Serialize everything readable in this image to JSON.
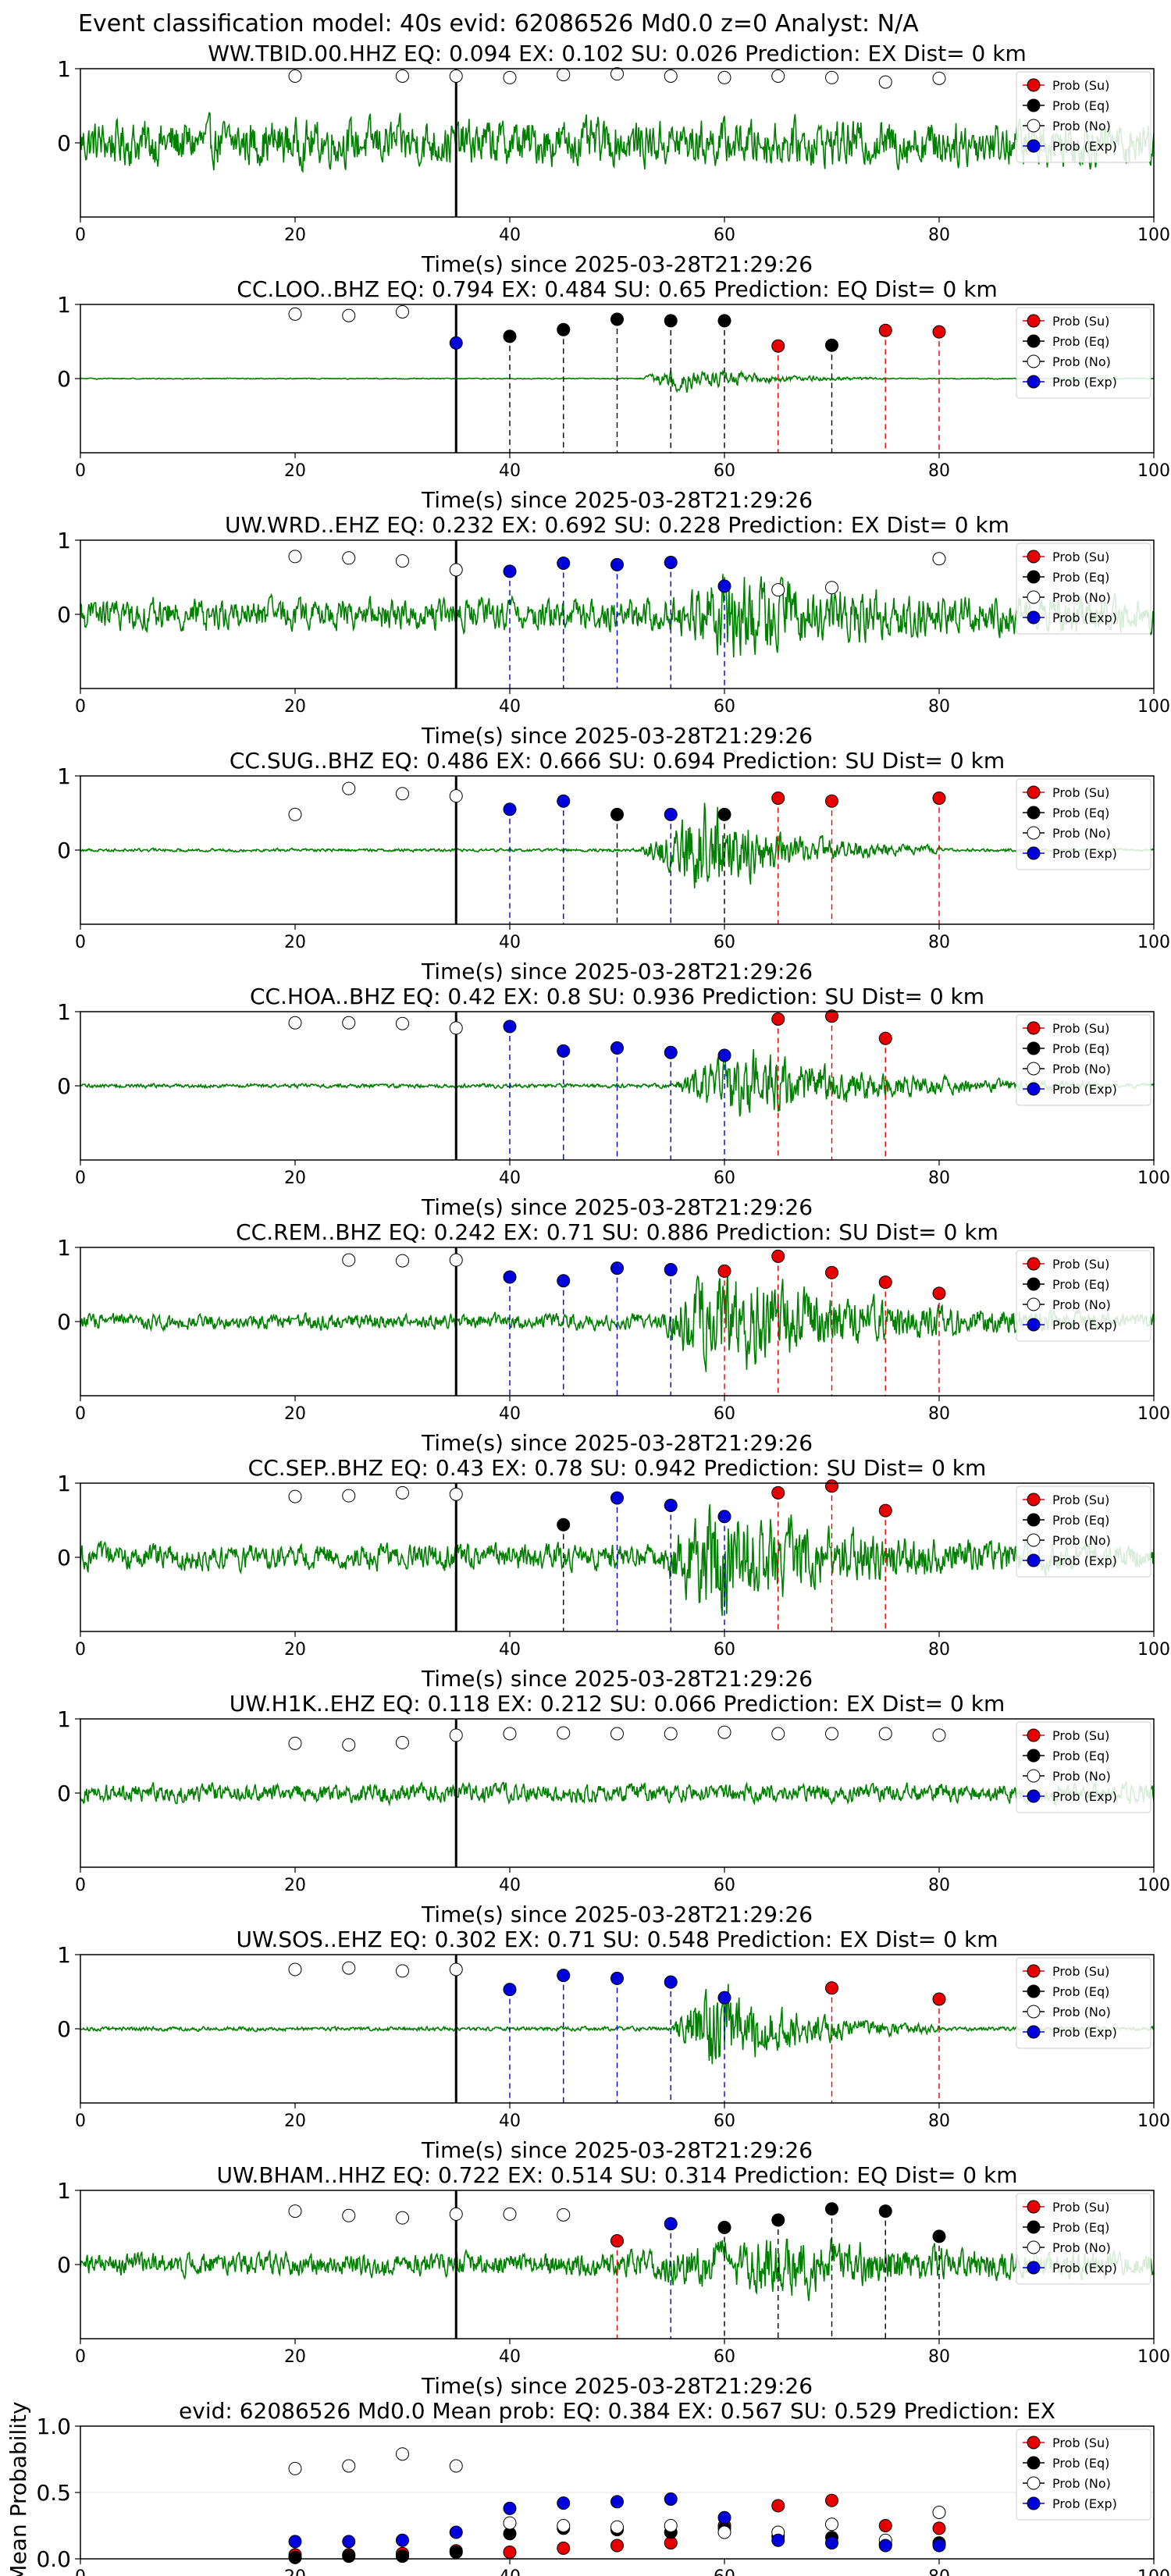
{
  "figure": {
    "title": "Event classification model: 40s evid: 62086526 Md0.0 z=0 Analyst: N/A"
  },
  "legend": {
    "items": [
      {
        "label": "Prob (Su)",
        "color": "#e60000",
        "filled": true
      },
      {
        "label": "Prob (Eq)",
        "color": "#000000",
        "filled": true
      },
      {
        "label": "Prob (No)",
        "color": "#ffffff",
        "filled": false
      },
      {
        "label": "Prob (Exp)",
        "color": "#0000dd",
        "filled": true
      }
    ],
    "placement": "top-right"
  },
  "colors": {
    "waveform": "#008000",
    "su": "#e60000",
    "eq": "#000000",
    "exp": "#0000dd",
    "noise_face": "#ffffff"
  },
  "chart_data": [
    {
      "type": "line",
      "station_title": "WW.TBID.00.HHZ   EQ: 0.094  EX: 0.102  SU: 0.026   Prediction: EX    Dist= 0 km",
      "xlabel": "Time(s) since 2025-03-28T21:29:26",
      "xlim": [
        0,
        100
      ],
      "xticks": [
        0,
        20,
        40,
        60,
        80,
        100
      ],
      "yticks": [
        0,
        1
      ],
      "ylim": [
        -1,
        1
      ],
      "onset": 35,
      "amplitude": 0.45,
      "burst": null,
      "points": [
        {
          "t": 20,
          "p": 0.9,
          "cls": "No"
        },
        {
          "t": 30,
          "p": 0.9,
          "cls": "No"
        },
        {
          "t": 35,
          "p": 0.9,
          "cls": "No"
        },
        {
          "t": 40,
          "p": 0.88,
          "cls": "No"
        },
        {
          "t": 45,
          "p": 0.92,
          "cls": "No"
        },
        {
          "t": 50,
          "p": 0.93,
          "cls": "No"
        },
        {
          "t": 55,
          "p": 0.9,
          "cls": "No"
        },
        {
          "t": 60,
          "p": 0.88,
          "cls": "No"
        },
        {
          "t": 65,
          "p": 0.9,
          "cls": "No"
        },
        {
          "t": 70,
          "p": 0.88,
          "cls": "No"
        },
        {
          "t": 75,
          "p": 0.82,
          "cls": "No"
        },
        {
          "t": 80,
          "p": 0.87,
          "cls": "No"
        }
      ]
    },
    {
      "type": "line",
      "station_title": "CC.LOO..BHZ   EQ: 0.794  EX: 0.484  SU: 0.65   Prediction: EQ    Dist= 0 km",
      "xlabel": "Time(s) since 2025-03-28T21:29:26",
      "xlim": [
        0,
        100
      ],
      "xticks": [
        0,
        20,
        40,
        60,
        80,
        100
      ],
      "yticks": [
        0,
        1
      ],
      "ylim": [
        -1,
        1
      ],
      "onset": 35,
      "amplitude": 0.01,
      "burst": {
        "start": 52,
        "peak": 56,
        "end": 75,
        "amp": 0.25
      },
      "points": [
        {
          "t": 20,
          "p": 0.87,
          "cls": "No"
        },
        {
          "t": 25,
          "p": 0.85,
          "cls": "No"
        },
        {
          "t": 30,
          "p": 0.9,
          "cls": "No"
        },
        {
          "t": 35,
          "p": 0.48,
          "cls": "Exp"
        },
        {
          "t": 40,
          "p": 0.57,
          "cls": "Eq"
        },
        {
          "t": 45,
          "p": 0.66,
          "cls": "Eq"
        },
        {
          "t": 50,
          "p": 0.8,
          "cls": "Eq"
        },
        {
          "t": 55,
          "p": 0.78,
          "cls": "Eq"
        },
        {
          "t": 60,
          "p": 0.78,
          "cls": "Eq"
        },
        {
          "t": 65,
          "p": 0.44,
          "cls": "Su"
        },
        {
          "t": 70,
          "p": 0.45,
          "cls": "Eq"
        },
        {
          "t": 75,
          "p": 0.65,
          "cls": "Su"
        },
        {
          "t": 80,
          "p": 0.63,
          "cls": "Su"
        }
      ]
    },
    {
      "type": "line",
      "station_title": "UW.WRD..EHZ   EQ: 0.232  EX: 0.692  SU: 0.228   Prediction: EX    Dist= 0 km",
      "xlabel": "Time(s) since 2025-03-28T21:29:26",
      "xlim": [
        0,
        100
      ],
      "xticks": [
        0,
        20,
        40,
        60,
        80,
        100
      ],
      "yticks": [
        0,
        1
      ],
      "ylim": [
        -1,
        1
      ],
      "onset": 35,
      "amplitude": 0.3,
      "burst": {
        "start": 55,
        "peak": 60,
        "end": 100,
        "amp": 0.55
      },
      "points": [
        {
          "t": 20,
          "p": 0.78,
          "cls": "No"
        },
        {
          "t": 25,
          "p": 0.76,
          "cls": "No"
        },
        {
          "t": 30,
          "p": 0.72,
          "cls": "No"
        },
        {
          "t": 35,
          "p": 0.6,
          "cls": "No"
        },
        {
          "t": 40,
          "p": 0.58,
          "cls": "Exp"
        },
        {
          "t": 45,
          "p": 0.69,
          "cls": "Exp"
        },
        {
          "t": 50,
          "p": 0.67,
          "cls": "Exp"
        },
        {
          "t": 55,
          "p": 0.7,
          "cls": "Exp"
        },
        {
          "t": 60,
          "p": 0.38,
          "cls": "Exp"
        },
        {
          "t": 65,
          "p": 0.33,
          "cls": "No"
        },
        {
          "t": 70,
          "p": 0.36,
          "cls": "No"
        },
        {
          "t": 80,
          "p": 0.75,
          "cls": "No"
        }
      ]
    },
    {
      "type": "line",
      "station_title": "CC.SUG..BHZ   EQ: 0.486  EX: 0.666  SU: 0.694   Prediction: SU    Dist= 0 km",
      "xlabel": "Time(s) since 2025-03-28T21:29:26",
      "xlim": [
        0,
        100
      ],
      "xticks": [
        0,
        20,
        40,
        60,
        80,
        100
      ],
      "yticks": [
        0,
        1
      ],
      "ylim": [
        -1,
        1
      ],
      "onset": 35,
      "amplitude": 0.03,
      "burst": {
        "start": 52,
        "peak": 58,
        "end": 80,
        "amp": 0.95
      },
      "points": [
        {
          "t": 20,
          "p": 0.48,
          "cls": "No"
        },
        {
          "t": 25,
          "p": 0.83,
          "cls": "No"
        },
        {
          "t": 30,
          "p": 0.76,
          "cls": "No"
        },
        {
          "t": 35,
          "p": 0.73,
          "cls": "No"
        },
        {
          "t": 40,
          "p": 0.55,
          "cls": "Exp"
        },
        {
          "t": 45,
          "p": 0.66,
          "cls": "Exp"
        },
        {
          "t": 50,
          "p": 0.48,
          "cls": "Eq"
        },
        {
          "t": 55,
          "p": 0.48,
          "cls": "Exp"
        },
        {
          "t": 60,
          "p": 0.48,
          "cls": "Eq"
        },
        {
          "t": 65,
          "p": 0.7,
          "cls": "Su"
        },
        {
          "t": 70,
          "p": 0.66,
          "cls": "Su"
        },
        {
          "t": 80,
          "p": 0.7,
          "cls": "Su"
        }
      ]
    },
    {
      "type": "line",
      "station_title": "CC.HOA..BHZ   EQ: 0.42  EX: 0.8  SU: 0.936   Prediction: SU    Dist= 0 km",
      "xlabel": "Time(s) since 2025-03-28T21:29:26",
      "xlim": [
        0,
        100
      ],
      "xticks": [
        0,
        20,
        40,
        60,
        80,
        100
      ],
      "yticks": [
        0,
        1
      ],
      "ylim": [
        -1,
        1
      ],
      "onset": 35,
      "amplitude": 0.04,
      "burst": {
        "start": 55,
        "peak": 61,
        "end": 95,
        "amp": 0.7
      },
      "points": [
        {
          "t": 20,
          "p": 0.85,
          "cls": "No"
        },
        {
          "t": 25,
          "p": 0.85,
          "cls": "No"
        },
        {
          "t": 30,
          "p": 0.84,
          "cls": "No"
        },
        {
          "t": 35,
          "p": 0.78,
          "cls": "No"
        },
        {
          "t": 40,
          "p": 0.8,
          "cls": "Exp"
        },
        {
          "t": 45,
          "p": 0.47,
          "cls": "Exp"
        },
        {
          "t": 50,
          "p": 0.51,
          "cls": "Exp"
        },
        {
          "t": 55,
          "p": 0.45,
          "cls": "Exp"
        },
        {
          "t": 60,
          "p": 0.41,
          "cls": "Exp"
        },
        {
          "t": 65,
          "p": 0.9,
          "cls": "Su"
        },
        {
          "t": 70,
          "p": 0.94,
          "cls": "Su"
        },
        {
          "t": 75,
          "p": 0.64,
          "cls": "Su"
        }
      ]
    },
    {
      "type": "line",
      "station_title": "CC.REM..BHZ   EQ: 0.242  EX: 0.71  SU: 0.886   Prediction: SU    Dist= 0 km",
      "xlabel": "Time(s) since 2025-03-28T21:29:26",
      "xlim": [
        0,
        100
      ],
      "xticks": [
        0,
        20,
        40,
        60,
        80,
        100
      ],
      "yticks": [
        0,
        1
      ],
      "ylim": [
        -1,
        1
      ],
      "onset": 35,
      "amplitude": 0.15,
      "burst": {
        "start": 54,
        "peak": 59,
        "end": 95,
        "amp": 0.95
      },
      "points": [
        {
          "t": 25,
          "p": 0.83,
          "cls": "No"
        },
        {
          "t": 30,
          "p": 0.82,
          "cls": "No"
        },
        {
          "t": 35,
          "p": 0.83,
          "cls": "No"
        },
        {
          "t": 40,
          "p": 0.6,
          "cls": "Exp"
        },
        {
          "t": 45,
          "p": 0.55,
          "cls": "Exp"
        },
        {
          "t": 50,
          "p": 0.72,
          "cls": "Exp"
        },
        {
          "t": 55,
          "p": 0.7,
          "cls": "Exp"
        },
        {
          "t": 60,
          "p": 0.68,
          "cls": "Su"
        },
        {
          "t": 65,
          "p": 0.88,
          "cls": "Su"
        },
        {
          "t": 70,
          "p": 0.66,
          "cls": "Su"
        },
        {
          "t": 75,
          "p": 0.53,
          "cls": "Su"
        },
        {
          "t": 80,
          "p": 0.38,
          "cls": "Su"
        }
      ]
    },
    {
      "type": "line",
      "station_title": "CC.SEP..BHZ   EQ: 0.43  EX: 0.78  SU: 0.942   Prediction: SU    Dist= 0 km",
      "xlabel": "Time(s) since 2025-03-28T21:29:26",
      "xlim": [
        0,
        100
      ],
      "xticks": [
        0,
        20,
        40,
        60,
        80,
        100
      ],
      "yticks": [
        0,
        1
      ],
      "ylim": [
        -1,
        1
      ],
      "onset": 35,
      "amplitude": 0.25,
      "burst": {
        "start": 54,
        "peak": 59,
        "end": 90,
        "amp": 0.95
      },
      "points": [
        {
          "t": 20,
          "p": 0.82,
          "cls": "No"
        },
        {
          "t": 25,
          "p": 0.83,
          "cls": "No"
        },
        {
          "t": 30,
          "p": 0.87,
          "cls": "No"
        },
        {
          "t": 35,
          "p": 0.85,
          "cls": "No"
        },
        {
          "t": 45,
          "p": 0.44,
          "cls": "Eq"
        },
        {
          "t": 50,
          "p": 0.8,
          "cls": "Exp"
        },
        {
          "t": 55,
          "p": 0.7,
          "cls": "Exp"
        },
        {
          "t": 60,
          "p": 0.55,
          "cls": "Exp"
        },
        {
          "t": 65,
          "p": 0.87,
          "cls": "Su"
        },
        {
          "t": 70,
          "p": 0.96,
          "cls": "Su"
        },
        {
          "t": 75,
          "p": 0.63,
          "cls": "Su"
        }
      ]
    },
    {
      "type": "line",
      "station_title": "UW.H1K..EHZ   EQ: 0.118  EX: 0.212  SU: 0.066   Prediction: EX    Dist= 0 km",
      "xlabel": "Time(s) since 2025-03-28T21:29:26",
      "xlim": [
        0,
        100
      ],
      "xticks": [
        0,
        20,
        40,
        60,
        80,
        100
      ],
      "yticks": [
        0,
        1
      ],
      "ylim": [
        -1,
        1
      ],
      "onset": 35,
      "amplitude": 0.18,
      "burst": null,
      "points": [
        {
          "t": 20,
          "p": 0.67,
          "cls": "No"
        },
        {
          "t": 25,
          "p": 0.65,
          "cls": "No"
        },
        {
          "t": 30,
          "p": 0.68,
          "cls": "No"
        },
        {
          "t": 35,
          "p": 0.78,
          "cls": "No"
        },
        {
          "t": 40,
          "p": 0.8,
          "cls": "No"
        },
        {
          "t": 45,
          "p": 0.81,
          "cls": "No"
        },
        {
          "t": 50,
          "p": 0.8,
          "cls": "No"
        },
        {
          "t": 55,
          "p": 0.8,
          "cls": "No"
        },
        {
          "t": 60,
          "p": 0.82,
          "cls": "No"
        },
        {
          "t": 65,
          "p": 0.8,
          "cls": "No"
        },
        {
          "t": 70,
          "p": 0.8,
          "cls": "No"
        },
        {
          "t": 75,
          "p": 0.8,
          "cls": "No"
        },
        {
          "t": 80,
          "p": 0.78,
          "cls": "No"
        }
      ]
    },
    {
      "type": "line",
      "station_title": "UW.SOS..EHZ   EQ: 0.302  EX: 0.71  SU: 0.548   Prediction: EX    Dist= 0 km",
      "xlabel": "Time(s) since 2025-03-28T21:29:26",
      "xlim": [
        0,
        100
      ],
      "xticks": [
        0,
        20,
        40,
        60,
        80,
        100
      ],
      "yticks": [
        0,
        1
      ],
      "ylim": [
        -1,
        1
      ],
      "onset": 35,
      "amplitude": 0.04,
      "burst": {
        "start": 55,
        "peak": 59,
        "end": 80,
        "amp": 0.95
      },
      "points": [
        {
          "t": 20,
          "p": 0.8,
          "cls": "No"
        },
        {
          "t": 25,
          "p": 0.82,
          "cls": "No"
        },
        {
          "t": 30,
          "p": 0.78,
          "cls": "No"
        },
        {
          "t": 35,
          "p": 0.8,
          "cls": "No"
        },
        {
          "t": 40,
          "p": 0.53,
          "cls": "Exp"
        },
        {
          "t": 45,
          "p": 0.72,
          "cls": "Exp"
        },
        {
          "t": 50,
          "p": 0.68,
          "cls": "Exp"
        },
        {
          "t": 55,
          "p": 0.63,
          "cls": "Exp"
        },
        {
          "t": 60,
          "p": 0.42,
          "cls": "Exp"
        },
        {
          "t": 70,
          "p": 0.55,
          "cls": "Su"
        },
        {
          "t": 80,
          "p": 0.4,
          "cls": "Su"
        }
      ]
    },
    {
      "type": "line",
      "station_title": "UW.BHAM..HHZ   EQ: 0.722  EX: 0.514  SU: 0.314   Prediction: EQ    Dist= 0 km",
      "xlabel": "Time(s) since 2025-03-28T21:29:26",
      "xlim": [
        0,
        100
      ],
      "xticks": [
        0,
        20,
        40,
        60,
        80,
        100
      ],
      "yticks": [
        0,
        1
      ],
      "ylim": [
        -1,
        1
      ],
      "onset": 35,
      "amplitude": 0.22,
      "burst": {
        "start": 50,
        "peak": 66,
        "end": 100,
        "amp": 0.4
      },
      "points": [
        {
          "t": 20,
          "p": 0.72,
          "cls": "No"
        },
        {
          "t": 25,
          "p": 0.66,
          "cls": "No"
        },
        {
          "t": 30,
          "p": 0.63,
          "cls": "No"
        },
        {
          "t": 35,
          "p": 0.68,
          "cls": "No"
        },
        {
          "t": 40,
          "p": 0.68,
          "cls": "No"
        },
        {
          "t": 45,
          "p": 0.67,
          "cls": "No"
        },
        {
          "t": 50,
          "p": 0.32,
          "cls": "Su"
        },
        {
          "t": 55,
          "p": 0.55,
          "cls": "Exp"
        },
        {
          "t": 60,
          "p": 0.5,
          "cls": "Eq"
        },
        {
          "t": 65,
          "p": 0.6,
          "cls": "Eq"
        },
        {
          "t": 70,
          "p": 0.75,
          "cls": "Eq"
        },
        {
          "t": 75,
          "p": 0.72,
          "cls": "Eq"
        },
        {
          "t": 80,
          "p": 0.38,
          "cls": "Eq"
        }
      ]
    },
    {
      "type": "scatter",
      "title": "evid: 62086526  Md0.0   Mean prob:   EQ: 0.384  EX: 0.567  SU: 0.529   Prediction: EX",
      "ylabel": "Mean Probability",
      "xlim": [
        0,
        100
      ],
      "ylim": [
        0,
        1
      ],
      "xticks": [
        0,
        20,
        40,
        60,
        80,
        100
      ],
      "yticks": [
        0.0,
        0.5,
        1.0
      ],
      "x": [
        20,
        25,
        30,
        35,
        40,
        45,
        50,
        55,
        60,
        65,
        70,
        75,
        80
      ],
      "series": [
        {
          "name": "Prob (Su)",
          "values": [
            0.03,
            0.03,
            0.04,
            0.06,
            0.05,
            0.08,
            0.1,
            0.12,
            0.25,
            0.4,
            0.44,
            0.25,
            0.23
          ]
        },
        {
          "name": "Prob (Eq)",
          "values": [
            0.01,
            0.02,
            0.02,
            0.05,
            0.19,
            0.23,
            0.22,
            0.2,
            0.23,
            0.17,
            0.16,
            0.11,
            0.12
          ]
        },
        {
          "name": "Prob (No)",
          "values": [
            0.68,
            0.7,
            0.79,
            0.7,
            0.27,
            0.25,
            0.24,
            0.25,
            0.2,
            0.2,
            0.26,
            0.14,
            0.35
          ]
        },
        {
          "name": "Prob (Exp)",
          "values": [
            0.13,
            0.13,
            0.14,
            0.2,
            0.38,
            0.42,
            0.43,
            0.45,
            0.31,
            0.14,
            0.12,
            0.1,
            0.1
          ]
        }
      ]
    }
  ]
}
